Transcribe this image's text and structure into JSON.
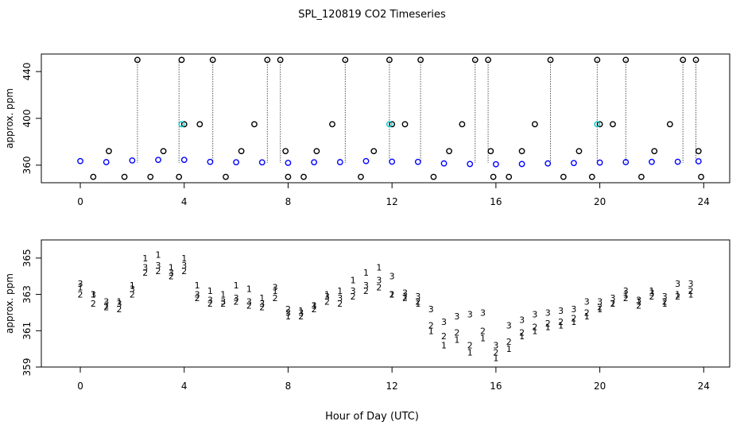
{
  "title": "SPL_120819  CO2 Timeseries",
  "xlabel": "Hour of Day (UTC)",
  "chart_data": [
    {
      "type": "scatter",
      "ylabel": "approx. ppm",
      "xlim": [
        -1.5,
        25
      ],
      "ylim": [
        345,
        455
      ],
      "xticks": [
        "0",
        "4",
        "8",
        "12",
        "16",
        "20",
        "24"
      ],
      "yticks": [
        "360",
        "400",
        "440"
      ],
      "series": [
        {
          "color": "#000000",
          "marker": "open-circle",
          "x": [
            0.5,
            1.1,
            1.7,
            2.2,
            2.7,
            3.2,
            3.8,
            3.9,
            4.0,
            4.6,
            5.1,
            5.6,
            6.2,
            6.7,
            7.2,
            7.7,
            7.9,
            8.0,
            8.6,
            9.1,
            9.7,
            10.2,
            10.8,
            11.3,
            11.9,
            12.0,
            12.5,
            13.1,
            13.6,
            14.2,
            14.7,
            15.2,
            15.7,
            15.8,
            15.9,
            16.5,
            17.0,
            17.5,
            18.1,
            18.6,
            19.2,
            19.7,
            19.9,
            20.0,
            20.5,
            21.0,
            21.6,
            22.1,
            22.7,
            23.2,
            23.7,
            23.8,
            23.9
          ],
          "y": [
            350,
            372,
            350,
            450,
            350,
            372,
            350,
            450,
            395,
            395,
            450,
            350,
            372,
            395,
            450,
            450,
            372,
            350,
            350,
            372,
            395,
            450,
            350,
            372,
            450,
            395,
            395,
            450,
            350,
            372,
            395,
            450,
            450,
            372,
            350,
            350,
            372,
            395,
            450,
            350,
            372,
            350,
            450,
            395,
            395,
            450,
            350,
            372,
            395,
            450,
            450,
            372,
            350
          ]
        },
        {
          "color": "#00cccc",
          "marker": "open-circle",
          "x": [
            3.9,
            11.9,
            19.9
          ],
          "y": [
            395,
            395,
            395
          ]
        },
        {
          "color": "#0000ff",
          "marker": "open-circle",
          "x": [
            0,
            1,
            2,
            3,
            4,
            5,
            6,
            7,
            8,
            9,
            10,
            11,
            12,
            13,
            14,
            15,
            16,
            17,
            18,
            19,
            20,
            21,
            22,
            23,
            23.8
          ],
          "y": [
            363.5,
            362.6,
            364.0,
            364.5,
            364.5,
            362.8,
            362.5,
            362.4,
            362.0,
            362.5,
            362.6,
            363.5,
            363.0,
            362.8,
            361.5,
            361.0,
            360.8,
            361.0,
            361.5,
            361.8,
            362.2,
            362.6,
            362.8,
            362.9,
            363.3
          ]
        }
      ],
      "stems": [
        {
          "x": 2.2,
          "y": 450
        },
        {
          "x": 3.8,
          "y": 450
        },
        {
          "x": 5.1,
          "y": 450
        },
        {
          "x": 7.2,
          "y": 450
        },
        {
          "x": 7.7,
          "y": 450
        },
        {
          "x": 10.2,
          "y": 450
        },
        {
          "x": 11.9,
          "y": 450
        },
        {
          "x": 13.1,
          "y": 450
        },
        {
          "x": 15.2,
          "y": 450
        },
        {
          "x": 15.7,
          "y": 450
        },
        {
          "x": 18.1,
          "y": 450
        },
        {
          "x": 19.9,
          "y": 450
        },
        {
          "x": 21.0,
          "y": 450
        },
        {
          "x": 23.2,
          "y": 450
        },
        {
          "x": 23.7,
          "y": 450
        }
      ]
    },
    {
      "type": "scatter",
      "ylabel": "approx. ppm",
      "xlim": [
        -1.5,
        25
      ],
      "ylim": [
        359,
        366
      ],
      "xticks": [
        "0",
        "4",
        "8",
        "12",
        "16",
        "20",
        "24"
      ],
      "yticks": [
        "359",
        "361",
        "363",
        "365"
      ],
      "series": [
        {
          "marker": "1",
          "color": "#dd0000",
          "x": [
            0,
            0.5,
            1,
            1.5,
            2,
            2.5,
            3,
            3.5,
            4,
            4.5,
            5,
            5.5,
            6,
            6.5,
            7,
            7.5,
            8,
            8.5,
            9,
            9.5,
            10,
            10.5,
            11,
            11.5,
            12,
            12.5,
            13,
            13.5,
            14,
            14.5,
            15,
            15.5,
            16,
            16.5,
            17,
            17.5,
            18,
            18.5,
            19,
            19.5,
            20,
            20.5,
            21,
            21.5,
            22,
            22.5,
            23,
            23.5
          ],
          "y": [
            363.4,
            363.0,
            362.4,
            362.6,
            363.5,
            365.0,
            365.2,
            364.5,
            365.0,
            363.5,
            363.2,
            363.0,
            363.5,
            363.3,
            362.8,
            363.2,
            361.8,
            362.1,
            362.4,
            363.0,
            363.2,
            363.8,
            364.2,
            364.5,
            363.0,
            362.9,
            362.5,
            361.0,
            360.2,
            360.5,
            359.8,
            360.6,
            359.5,
            360.0,
            360.7,
            361.0,
            361.2,
            361.3,
            361.5,
            361.8,
            362.2,
            362.5,
            363.0,
            362.6,
            363.2,
            362.5,
            363.0,
            363.0
          ]
        },
        {
          "marker": "2",
          "color": "#00bb00",
          "x": [
            0,
            0.5,
            1,
            1.5,
            2,
            2.5,
            3,
            3.5,
            4,
            4.5,
            5,
            5.5,
            6,
            6.5,
            7,
            7.5,
            8,
            8.5,
            9,
            9.5,
            10,
            10.5,
            11,
            11.5,
            12,
            12.5,
            13,
            13.5,
            14,
            14.5,
            15,
            15.5,
            16,
            16.5,
            17,
            17.5,
            18,
            18.5,
            19,
            19.5,
            20,
            20.5,
            21,
            21.5,
            22,
            22.5,
            23,
            23.5
          ],
          "y": [
            363.0,
            362.5,
            362.3,
            362.2,
            363.0,
            364.2,
            364.3,
            364.0,
            364.3,
            362.8,
            362.5,
            362.5,
            362.6,
            362.4,
            362.3,
            362.8,
            362.2,
            361.8,
            362.2,
            362.6,
            362.5,
            362.9,
            363.2,
            363.4,
            363.0,
            362.8,
            362.6,
            361.3,
            360.7,
            360.9,
            360.2,
            361.0,
            359.8,
            360.4,
            360.9,
            361.2,
            361.4,
            361.5,
            361.7,
            362.0,
            362.3,
            362.5,
            362.8,
            362.4,
            362.9,
            362.6,
            362.9,
            363.2
          ]
        },
        {
          "marker": "3",
          "color": "#0000dd",
          "x": [
            0,
            0.5,
            1,
            1.5,
            2,
            2.5,
            3,
            3.5,
            4,
            4.5,
            5,
            5.5,
            6,
            6.5,
            7,
            7.5,
            8,
            8.5,
            9,
            9.5,
            10,
            10.5,
            11,
            11.5,
            12,
            12.5,
            13,
            13.5,
            14,
            14.5,
            15,
            15.5,
            16,
            16.5,
            17,
            17.5,
            18,
            18.5,
            19,
            19.5,
            20,
            20.5,
            21,
            21.5,
            22,
            22.5,
            23,
            23.5
          ],
          "y": [
            363.6,
            363.0,
            362.6,
            362.5,
            363.3,
            364.5,
            364.6,
            364.2,
            364.6,
            363.0,
            362.7,
            362.6,
            362.8,
            362.6,
            362.5,
            363.4,
            362.0,
            362.0,
            362.4,
            362.9,
            362.8,
            363.2,
            363.5,
            363.8,
            364.0,
            363.1,
            362.9,
            362.2,
            361.5,
            361.8,
            361.9,
            362.0,
            360.2,
            361.3,
            361.6,
            361.9,
            362.0,
            362.1,
            362.2,
            362.6,
            362.6,
            362.8,
            363.2,
            362.7,
            363.1,
            362.9,
            363.6,
            363.6
          ]
        }
      ]
    }
  ]
}
